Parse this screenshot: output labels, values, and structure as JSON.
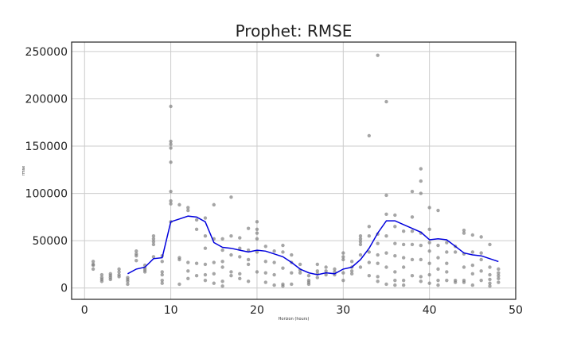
{
  "chart_data": {
    "type": "scatter",
    "title": "Prophet: RMSE",
    "xlabel": "Horizon (hours)",
    "ylabel": "rmse",
    "xlim": [
      -1.5,
      50
    ],
    "ylim": [
      -12000,
      260000
    ],
    "x_ticks": [
      0,
      10,
      20,
      30,
      40,
      50
    ],
    "y_ticks": [
      0,
      50000,
      100000,
      150000,
      200000,
      250000
    ],
    "x_tick_labels": [
      "0",
      "10",
      "20",
      "30",
      "40",
      "50"
    ],
    "y_tick_labels": [
      "0",
      "50000",
      "100000",
      "150000",
      "200000",
      "250000"
    ],
    "grid": true,
    "colors": {
      "points": "#808080",
      "mean_line": "#0000dd"
    },
    "mean_line": {
      "x": [
        5,
        6,
        7,
        8,
        9,
        10,
        11,
        12,
        13,
        14,
        15,
        16,
        17,
        18,
        19,
        20,
        21,
        22,
        23,
        24,
        25,
        26,
        27,
        28,
        29,
        30,
        31,
        32,
        33,
        34,
        35,
        36,
        37,
        38,
        39,
        40,
        41,
        42,
        43,
        44,
        45,
        46,
        47,
        48
      ],
      "y": [
        15000,
        20000,
        22000,
        31000,
        32000,
        70000,
        73000,
        76000,
        75000,
        70000,
        48000,
        43000,
        42000,
        40000,
        38000,
        40000,
        39000,
        36000,
        33000,
        27000,
        20000,
        16000,
        14000,
        16000,
        15000,
        20000,
        22000,
        30000,
        42000,
        58000,
        71000,
        71000,
        67000,
        63000,
        59000,
        51000,
        52000,
        51000,
        44000,
        37000,
        35000,
        34000,
        31000,
        28000
      ]
    },
    "points": [
      [
        1,
        28000
      ],
      [
        1,
        25000
      ],
      [
        1,
        24000
      ],
      [
        1,
        20000
      ],
      [
        2,
        14000
      ],
      [
        2,
        11000
      ],
      [
        2,
        9000
      ],
      [
        2,
        7000
      ],
      [
        3,
        15000
      ],
      [
        3,
        13000
      ],
      [
        3,
        11000
      ],
      [
        3,
        9000
      ],
      [
        4,
        20000
      ],
      [
        4,
        17000
      ],
      [
        4,
        14000
      ],
      [
        4,
        12000
      ],
      [
        5,
        11000
      ],
      [
        5,
        9000
      ],
      [
        5,
        7000
      ],
      [
        5,
        4000
      ],
      [
        6,
        39000
      ],
      [
        6,
        36000
      ],
      [
        6,
        34000
      ],
      [
        6,
        29000
      ],
      [
        7,
        24000
      ],
      [
        7,
        21000
      ],
      [
        7,
        19000
      ],
      [
        7,
        17000
      ],
      [
        8,
        55000
      ],
      [
        8,
        52000
      ],
      [
        8,
        49000
      ],
      [
        8,
        46000
      ],
      [
        8,
        33000
      ],
      [
        9,
        34000
      ],
      [
        9,
        28000
      ],
      [
        9,
        17000
      ],
      [
        9,
        14000
      ],
      [
        9,
        8000
      ],
      [
        9,
        5000
      ],
      [
        10,
        192000
      ],
      [
        10,
        155000
      ],
      [
        10,
        152000
      ],
      [
        10,
        148000
      ],
      [
        10,
        133000
      ],
      [
        10,
        102000
      ],
      [
        10,
        92000
      ],
      [
        10,
        89000
      ],
      [
        10,
        70000
      ],
      [
        11,
        88000
      ],
      [
        11,
        32000
      ],
      [
        11,
        30000
      ],
      [
        11,
        4000
      ],
      [
        12,
        85000
      ],
      [
        12,
        82000
      ],
      [
        12,
        27000
      ],
      [
        12,
        18000
      ],
      [
        12,
        10000
      ],
      [
        13,
        72000
      ],
      [
        13,
        62000
      ],
      [
        13,
        26000
      ],
      [
        13,
        13000
      ],
      [
        14,
        74000
      ],
      [
        14,
        55000
      ],
      [
        14,
        42000
      ],
      [
        14,
        25000
      ],
      [
        14,
        14000
      ],
      [
        14,
        8000
      ],
      [
        15,
        88000
      ],
      [
        15,
        52000
      ],
      [
        15,
        27000
      ],
      [
        15,
        15000
      ],
      [
        15,
        5000
      ],
      [
        16,
        52000
      ],
      [
        16,
        40000
      ],
      [
        16,
        28000
      ],
      [
        16,
        22000
      ],
      [
        16,
        7000
      ],
      [
        16,
        2000
      ],
      [
        17,
        96000
      ],
      [
        17,
        55000
      ],
      [
        17,
        35000
      ],
      [
        17,
        17000
      ],
      [
        17,
        13000
      ],
      [
        18,
        53000
      ],
      [
        18,
        42000
      ],
      [
        18,
        33000
      ],
      [
        18,
        15000
      ],
      [
        18,
        10000
      ],
      [
        19,
        63000
      ],
      [
        19,
        40000
      ],
      [
        19,
        30000
      ],
      [
        19,
        25000
      ],
      [
        19,
        7000
      ],
      [
        20,
        70000
      ],
      [
        20,
        62000
      ],
      [
        20,
        58000
      ],
      [
        20,
        52000
      ],
      [
        20,
        38000
      ],
      [
        20,
        17000
      ],
      [
        21,
        44000
      ],
      [
        21,
        28000
      ],
      [
        21,
        16000
      ],
      [
        21,
        6000
      ],
      [
        22,
        39000
      ],
      [
        22,
        27000
      ],
      [
        22,
        14000
      ],
      [
        22,
        3000
      ],
      [
        23,
        45000
      ],
      [
        23,
        38000
      ],
      [
        23,
        21000
      ],
      [
        23,
        4000
      ],
      [
        23,
        2000
      ],
      [
        24,
        35000
      ],
      [
        24,
        27000
      ],
      [
        24,
        16000
      ],
      [
        24,
        4000
      ],
      [
        25,
        25000
      ],
      [
        25,
        19000
      ],
      [
        25,
        16000
      ],
      [
        26,
        13000
      ],
      [
        26,
        8000
      ],
      [
        26,
        6000
      ],
      [
        26,
        4000
      ],
      [
        27,
        25000
      ],
      [
        27,
        18000
      ],
      [
        27,
        15000
      ],
      [
        27,
        11000
      ],
      [
        28,
        22000
      ],
      [
        28,
        18000
      ],
      [
        28,
        14000
      ],
      [
        29,
        20000
      ],
      [
        29,
        17000
      ],
      [
        29,
        14000
      ],
      [
        30,
        37000
      ],
      [
        30,
        33000
      ],
      [
        30,
        30000
      ],
      [
        30,
        16000
      ],
      [
        30,
        8000
      ],
      [
        31,
        28000
      ],
      [
        31,
        22000
      ],
      [
        31,
        18000
      ],
      [
        31,
        15000
      ],
      [
        32,
        55000
      ],
      [
        32,
        52000
      ],
      [
        32,
        49000
      ],
      [
        32,
        46000
      ],
      [
        32,
        35000
      ],
      [
        32,
        22000
      ],
      [
        33,
        161000
      ],
      [
        33,
        65000
      ],
      [
        33,
        55000
      ],
      [
        33,
        38000
      ],
      [
        33,
        27000
      ],
      [
        33,
        13000
      ],
      [
        34,
        246000
      ],
      [
        34,
        57000
      ],
      [
        34,
        47000
      ],
      [
        34,
        35000
      ],
      [
        34,
        26000
      ],
      [
        34,
        12000
      ],
      [
        34,
        7000
      ],
      [
        35,
        197000
      ],
      [
        35,
        98000
      ],
      [
        35,
        78000
      ],
      [
        35,
        55000
      ],
      [
        35,
        37000
      ],
      [
        35,
        22000
      ],
      [
        35,
        4000
      ],
      [
        36,
        77000
      ],
      [
        36,
        65000
      ],
      [
        36,
        47000
      ],
      [
        36,
        34000
      ],
      [
        36,
        17000
      ],
      [
        36,
        8000
      ],
      [
        36,
        3000
      ],
      [
        37,
        60000
      ],
      [
        37,
        46000
      ],
      [
        37,
        32000
      ],
      [
        37,
        22000
      ],
      [
        37,
        8000
      ],
      [
        37,
        3000
      ],
      [
        38,
        102000
      ],
      [
        38,
        75000
      ],
      [
        38,
        60000
      ],
      [
        38,
        46000
      ],
      [
        38,
        30000
      ],
      [
        38,
        13000
      ],
      [
        39,
        126000
      ],
      [
        39,
        113000
      ],
      [
        39,
        100000
      ],
      [
        39,
        58000
      ],
      [
        39,
        45000
      ],
      [
        39,
        30000
      ],
      [
        39,
        12000
      ],
      [
        39,
        7000
      ],
      [
        40,
        85000
      ],
      [
        40,
        62000
      ],
      [
        40,
        48000
      ],
      [
        40,
        39000
      ],
      [
        40,
        26000
      ],
      [
        40,
        14000
      ],
      [
        40,
        5000
      ],
      [
        41,
        82000
      ],
      [
        41,
        45000
      ],
      [
        41,
        32000
      ],
      [
        41,
        20000
      ],
      [
        41,
        8000
      ],
      [
        41,
        3000
      ],
      [
        42,
        48000
      ],
      [
        42,
        38000
      ],
      [
        42,
        26000
      ],
      [
        42,
        17000
      ],
      [
        42,
        8000
      ],
      [
        43,
        44000
      ],
      [
        43,
        38000
      ],
      [
        43,
        8000
      ],
      [
        43,
        6000
      ],
      [
        44,
        61000
      ],
      [
        44,
        58000
      ],
      [
        44,
        36000
      ],
      [
        44,
        22000
      ],
      [
        44,
        8000
      ],
      [
        44,
        6000
      ],
      [
        45,
        56000
      ],
      [
        45,
        38000
      ],
      [
        45,
        24000
      ],
      [
        45,
        15000
      ],
      [
        45,
        3000
      ],
      [
        46,
        54000
      ],
      [
        46,
        37000
      ],
      [
        46,
        30000
      ],
      [
        46,
        18000
      ],
      [
        46,
        8000
      ],
      [
        47,
        46000
      ],
      [
        47,
        22000
      ],
      [
        47,
        14000
      ],
      [
        47,
        9000
      ],
      [
        47,
        5000
      ],
      [
        47,
        2000
      ],
      [
        48,
        20000
      ],
      [
        48,
        16000
      ],
      [
        48,
        13000
      ],
      [
        48,
        10000
      ],
      [
        48,
        6000
      ]
    ]
  }
}
